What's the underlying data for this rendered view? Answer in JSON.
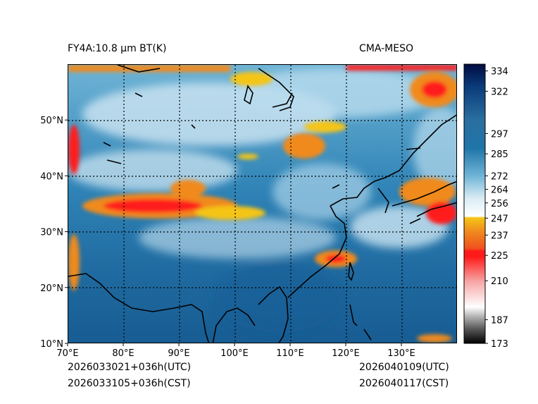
{
  "header": {
    "product": "FY4A:10.8 µm BT(K)",
    "model": "CMA-MESO"
  },
  "axes": {
    "lon_labels": [
      "70°E",
      "80°E",
      "90°E",
      "100°E",
      "110°E",
      "120°E",
      "130°E"
    ],
    "lon_values": [
      70,
      80,
      90,
      100,
      110,
      120,
      130
    ],
    "lat_labels": [
      "10°N",
      "20°N",
      "30°N",
      "40°N",
      "50°N"
    ],
    "lat_values": [
      10,
      20,
      30,
      40,
      50
    ],
    "lon_range": [
      70,
      140
    ],
    "lat_range": [
      10,
      60
    ]
  },
  "colorbar": {
    "tick_labels": [
      "334",
      "322",
      "297",
      "285",
      "272",
      "264",
      "256",
      "247",
      "237",
      "225",
      "210",
      "187",
      "173"
    ],
    "tick_values": [
      334,
      322,
      297,
      285,
      272,
      264,
      256,
      247,
      237,
      225,
      210,
      187,
      173
    ],
    "range": [
      173,
      338
    ],
    "colors": {
      "dark": "#000c40",
      "blue_dark": "#0b3b7a",
      "blue_mid": "#1f74a8",
      "blue_light": "#6fb4d6",
      "pale": "#d9ecf4",
      "yellow": "#f5c518",
      "orange": "#f08a1e",
      "red": "#ff1a1a",
      "pink": "#f7a8a8",
      "grey": "#9a9a9a",
      "black": "#000000"
    }
  },
  "footer": {
    "init_utc": "2026033021+036h(UTC)",
    "init_cst": "2026033105+036h(CST)",
    "valid_utc": "2026040109(UTC)",
    "valid_cst": "2026040117(CST)"
  }
}
